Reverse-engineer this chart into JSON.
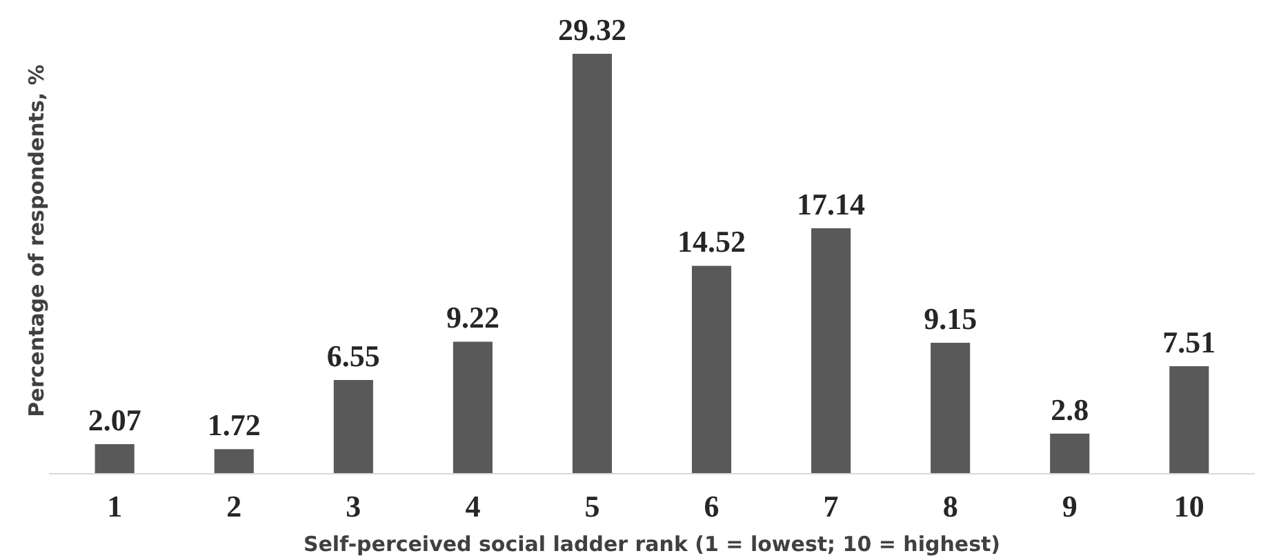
{
  "chart_data": {
    "type": "bar",
    "xlabel": "Self-perceived social ladder rank (1 = lowest; 10 = highest)",
    "ylabel": "Percentage of respondents, %",
    "categories": [
      "1",
      "2",
      "3",
      "4",
      "5",
      "6",
      "7",
      "8",
      "9",
      "10"
    ],
    "values": [
      2.07,
      1.72,
      6.55,
      9.22,
      29.32,
      14.52,
      17.14,
      9.15,
      2.8,
      7.51
    ],
    "color": "#595959",
    "data_labels": true,
    "grid": false
  }
}
